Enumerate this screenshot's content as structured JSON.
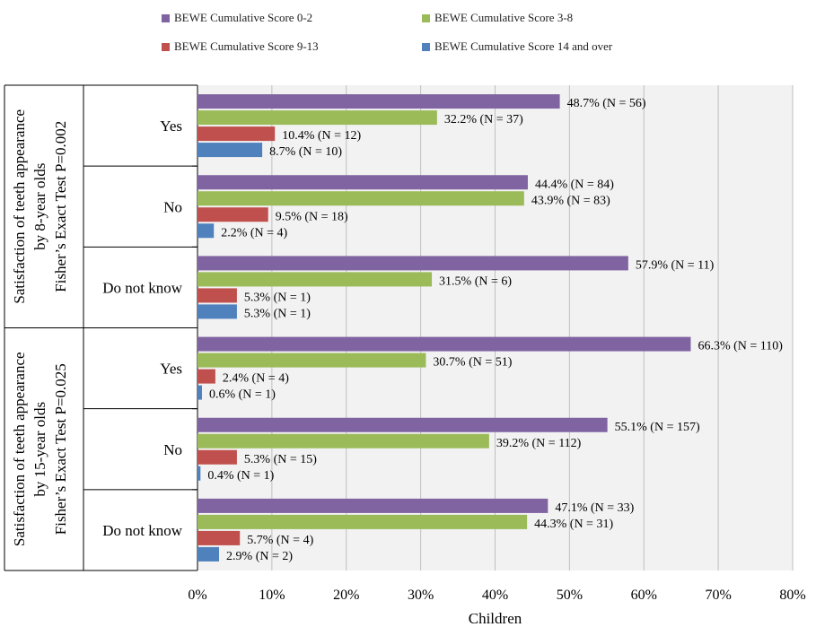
{
  "chart_data": {
    "type": "bar",
    "orientation": "horizontal",
    "xlabel": "Children",
    "xlim": [
      0,
      80
    ],
    "xticks": [
      "0%",
      "10%",
      "20%",
      "30%",
      "40%",
      "50%",
      "60%",
      "70%",
      "80%"
    ],
    "grid": true,
    "legend_position": "top",
    "groups": [
      {
        "label_lines": [
          "Satisfaction of teeth appearance",
          "by 8-year olds",
          "Fisher’s Exact Test P=0.002"
        ],
        "categories": [
          {
            "name": "Yes",
            "bars": [
              {
                "series": "BEWE Cumulative Score 0-2",
                "value": 48.7,
                "label": "48.7% (N = 56)"
              },
              {
                "series": "BEWE Cumulative Score 3-8",
                "value": 32.2,
                "label": "32.2% (N = 37)"
              },
              {
                "series": "BEWE Cumulative Score 9-13",
                "value": 10.4,
                "label": "10.4% (N = 12)"
              },
              {
                "series": "BEWE Cumulative Score 14 and over",
                "value": 8.7,
                "label": "8.7% (N = 10)"
              }
            ]
          },
          {
            "name": "No",
            "bars": [
              {
                "series": "BEWE Cumulative Score 0-2",
                "value": 44.4,
                "label": "44.4% (N = 84)"
              },
              {
                "series": "BEWE Cumulative Score 3-8",
                "value": 43.9,
                "label": "43.9% (N = 83)"
              },
              {
                "series": "BEWE Cumulative Score 9-13",
                "value": 9.5,
                "label": "9.5% (N = 18)"
              },
              {
                "series": "BEWE Cumulative Score 14 and over",
                "value": 2.2,
                "label": "2.2% (N = 4)"
              }
            ]
          },
          {
            "name": "Do not know",
            "bars": [
              {
                "series": "BEWE Cumulative Score 0-2",
                "value": 57.9,
                "label": "57.9% (N = 11)"
              },
              {
                "series": "BEWE Cumulative Score 3-8",
                "value": 31.5,
                "label": "31.5% (N = 6)"
              },
              {
                "series": "BEWE Cumulative Score 9-13",
                "value": 5.3,
                "label": "5.3% (N = 1)"
              },
              {
                "series": "BEWE Cumulative Score 14 and over",
                "value": 5.3,
                "label": "5.3% (N = 1)"
              }
            ]
          }
        ]
      },
      {
        "label_lines": [
          "Satisfaction of teeth appearance",
          "by 15-year olds",
          "Fisher’s Exact Test P=0.025"
        ],
        "categories": [
          {
            "name": "Yes",
            "bars": [
              {
                "series": "BEWE Cumulative Score 0-2",
                "value": 66.3,
                "label": "66.3% (N = 110)"
              },
              {
                "series": "BEWE Cumulative Score 3-8",
                "value": 30.7,
                "label": "30.7% (N = 51)"
              },
              {
                "series": "BEWE Cumulative Score 9-13",
                "value": 2.4,
                "label": "2.4% (N = 4)"
              },
              {
                "series": "BEWE Cumulative Score 14 and over",
                "value": 0.6,
                "label": "0.6% (N = 1)"
              }
            ]
          },
          {
            "name": "No",
            "bars": [
              {
                "series": "BEWE Cumulative Score 0-2",
                "value": 55.1,
                "label": "55.1% (N = 157)"
              },
              {
                "series": "BEWE Cumulative Score 3-8",
                "value": 39.2,
                "label": "39.2% (N = 112)"
              },
              {
                "series": "BEWE Cumulative Score 9-13",
                "value": 5.3,
                "label": "5.3% (N = 15)"
              },
              {
                "series": "BEWE Cumulative Score 14 and over",
                "value": 0.4,
                "label": "0.4% (N = 1)"
              }
            ]
          },
          {
            "name": "Do not know",
            "bars": [
              {
                "series": "BEWE Cumulative Score 0-2",
                "value": 47.1,
                "label": "47.1% (N = 33)"
              },
              {
                "series": "BEWE Cumulative Score 3-8",
                "value": 44.3,
                "label": "44.3% (N = 31)"
              },
              {
                "series": "BEWE Cumulative Score 9-13",
                "value": 5.7,
                "label": "5.7% (N = 4)"
              },
              {
                "series": "BEWE Cumulative Score 14 and over",
                "value": 2.9,
                "label": "2.9% (N = 2)"
              }
            ]
          }
        ]
      }
    ],
    "series": [
      {
        "name": "BEWE Cumulative Score 0-2",
        "color": "#8064A2"
      },
      {
        "name": "BEWE Cumulative Score 3-8",
        "color": "#9BBB59"
      },
      {
        "name": "BEWE Cumulative Score 9-13",
        "color": "#C0504D"
      },
      {
        "name": "BEWE Cumulative Score 14 and over",
        "color": "#4F81BD"
      }
    ]
  }
}
